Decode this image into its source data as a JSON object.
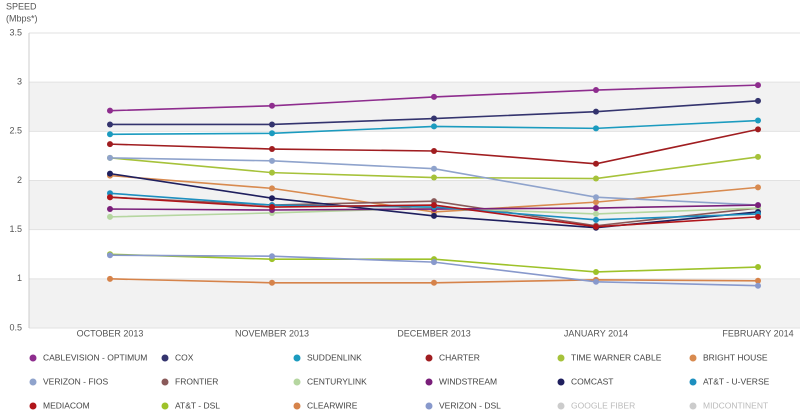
{
  "chart_data": {
    "type": "line",
    "y_label": [
      "SPEED",
      "(Mbps*)"
    ],
    "categories": [
      "OCTOBER 2013",
      "NOVEMBER 2013",
      "DECEMBER 2013",
      "JANUARY 2014",
      "FEBRUARY 2014"
    ],
    "ylim": [
      0.5,
      3.5
    ],
    "yticks": [
      0.5,
      1,
      1.5,
      2,
      2.5,
      3,
      3.5
    ],
    "grid": true,
    "series": [
      {
        "name": "CABLEVISION - OPTIMUM",
        "color": "#8e2d8e",
        "values": [
          2.71,
          2.76,
          2.85,
          2.92,
          2.97
        ]
      },
      {
        "name": "COX",
        "color": "#34346e",
        "values": [
          2.57,
          2.57,
          2.63,
          2.7,
          2.81
        ]
      },
      {
        "name": "SUDDENLINK",
        "color": "#1b9bbf",
        "values": [
          2.47,
          2.48,
          2.55,
          2.53,
          2.61
        ]
      },
      {
        "name": "CHARTER",
        "color": "#a01d20",
        "values": [
          2.37,
          2.32,
          2.3,
          2.17,
          2.52
        ]
      },
      {
        "name": "TIME WARNER CABLE",
        "color": "#a6c23a",
        "values": [
          2.23,
          2.08,
          2.03,
          2.02,
          2.24
        ]
      },
      {
        "name": "BRIGHT HOUSE",
        "color": "#d88a4f",
        "values": [
          2.05,
          1.92,
          1.68,
          1.78,
          1.93
        ]
      },
      {
        "name": "VERIZON - FIOS",
        "color": "#8fa3cc",
        "values": [
          2.23,
          2.2,
          2.12,
          1.83,
          1.75
        ]
      },
      {
        "name": "FRONTIER",
        "color": "#8a5a5a",
        "values": [
          1.83,
          1.75,
          1.79,
          1.54,
          1.72
        ]
      },
      {
        "name": "CENTURYLINK",
        "color": "#b5d6a0",
        "values": [
          1.63,
          1.67,
          1.72,
          1.66,
          1.72
        ]
      },
      {
        "name": "WINDSTREAM",
        "color": "#7a1f7a",
        "values": [
          1.71,
          1.7,
          1.71,
          1.72,
          1.75
        ]
      },
      {
        "name": "COMCAST",
        "color": "#1f1f5e",
        "values": [
          2.07,
          1.82,
          1.64,
          1.52,
          1.68
        ]
      },
      {
        "name": "AT&T - U-VERSE",
        "color": "#1d8fbf",
        "values": [
          1.87,
          1.75,
          1.73,
          1.6,
          1.66
        ]
      },
      {
        "name": "MEDIACOM",
        "color": "#b0151a",
        "values": [
          1.83,
          1.73,
          1.75,
          1.53,
          1.63
        ]
      },
      {
        "name": "AT&T - DSL",
        "color": "#9ec22a",
        "values": [
          1.25,
          1.2,
          1.2,
          1.07,
          1.12
        ]
      },
      {
        "name": "CLEARWIRE",
        "color": "#d6834a",
        "values": [
          1.0,
          0.96,
          0.96,
          0.99,
          0.98
        ]
      },
      {
        "name": "VERIZON - DSL",
        "color": "#8899cc",
        "values": [
          1.24,
          1.23,
          1.17,
          0.97,
          0.93
        ]
      },
      {
        "name": "GOOGLE FIBER",
        "color": "#cccccc",
        "values": [
          null,
          null,
          null,
          null,
          null
        ]
      },
      {
        "name": "MIDCONTINENT",
        "color": "#cccccc",
        "values": [
          null,
          null,
          null,
          null,
          null
        ]
      }
    ]
  }
}
